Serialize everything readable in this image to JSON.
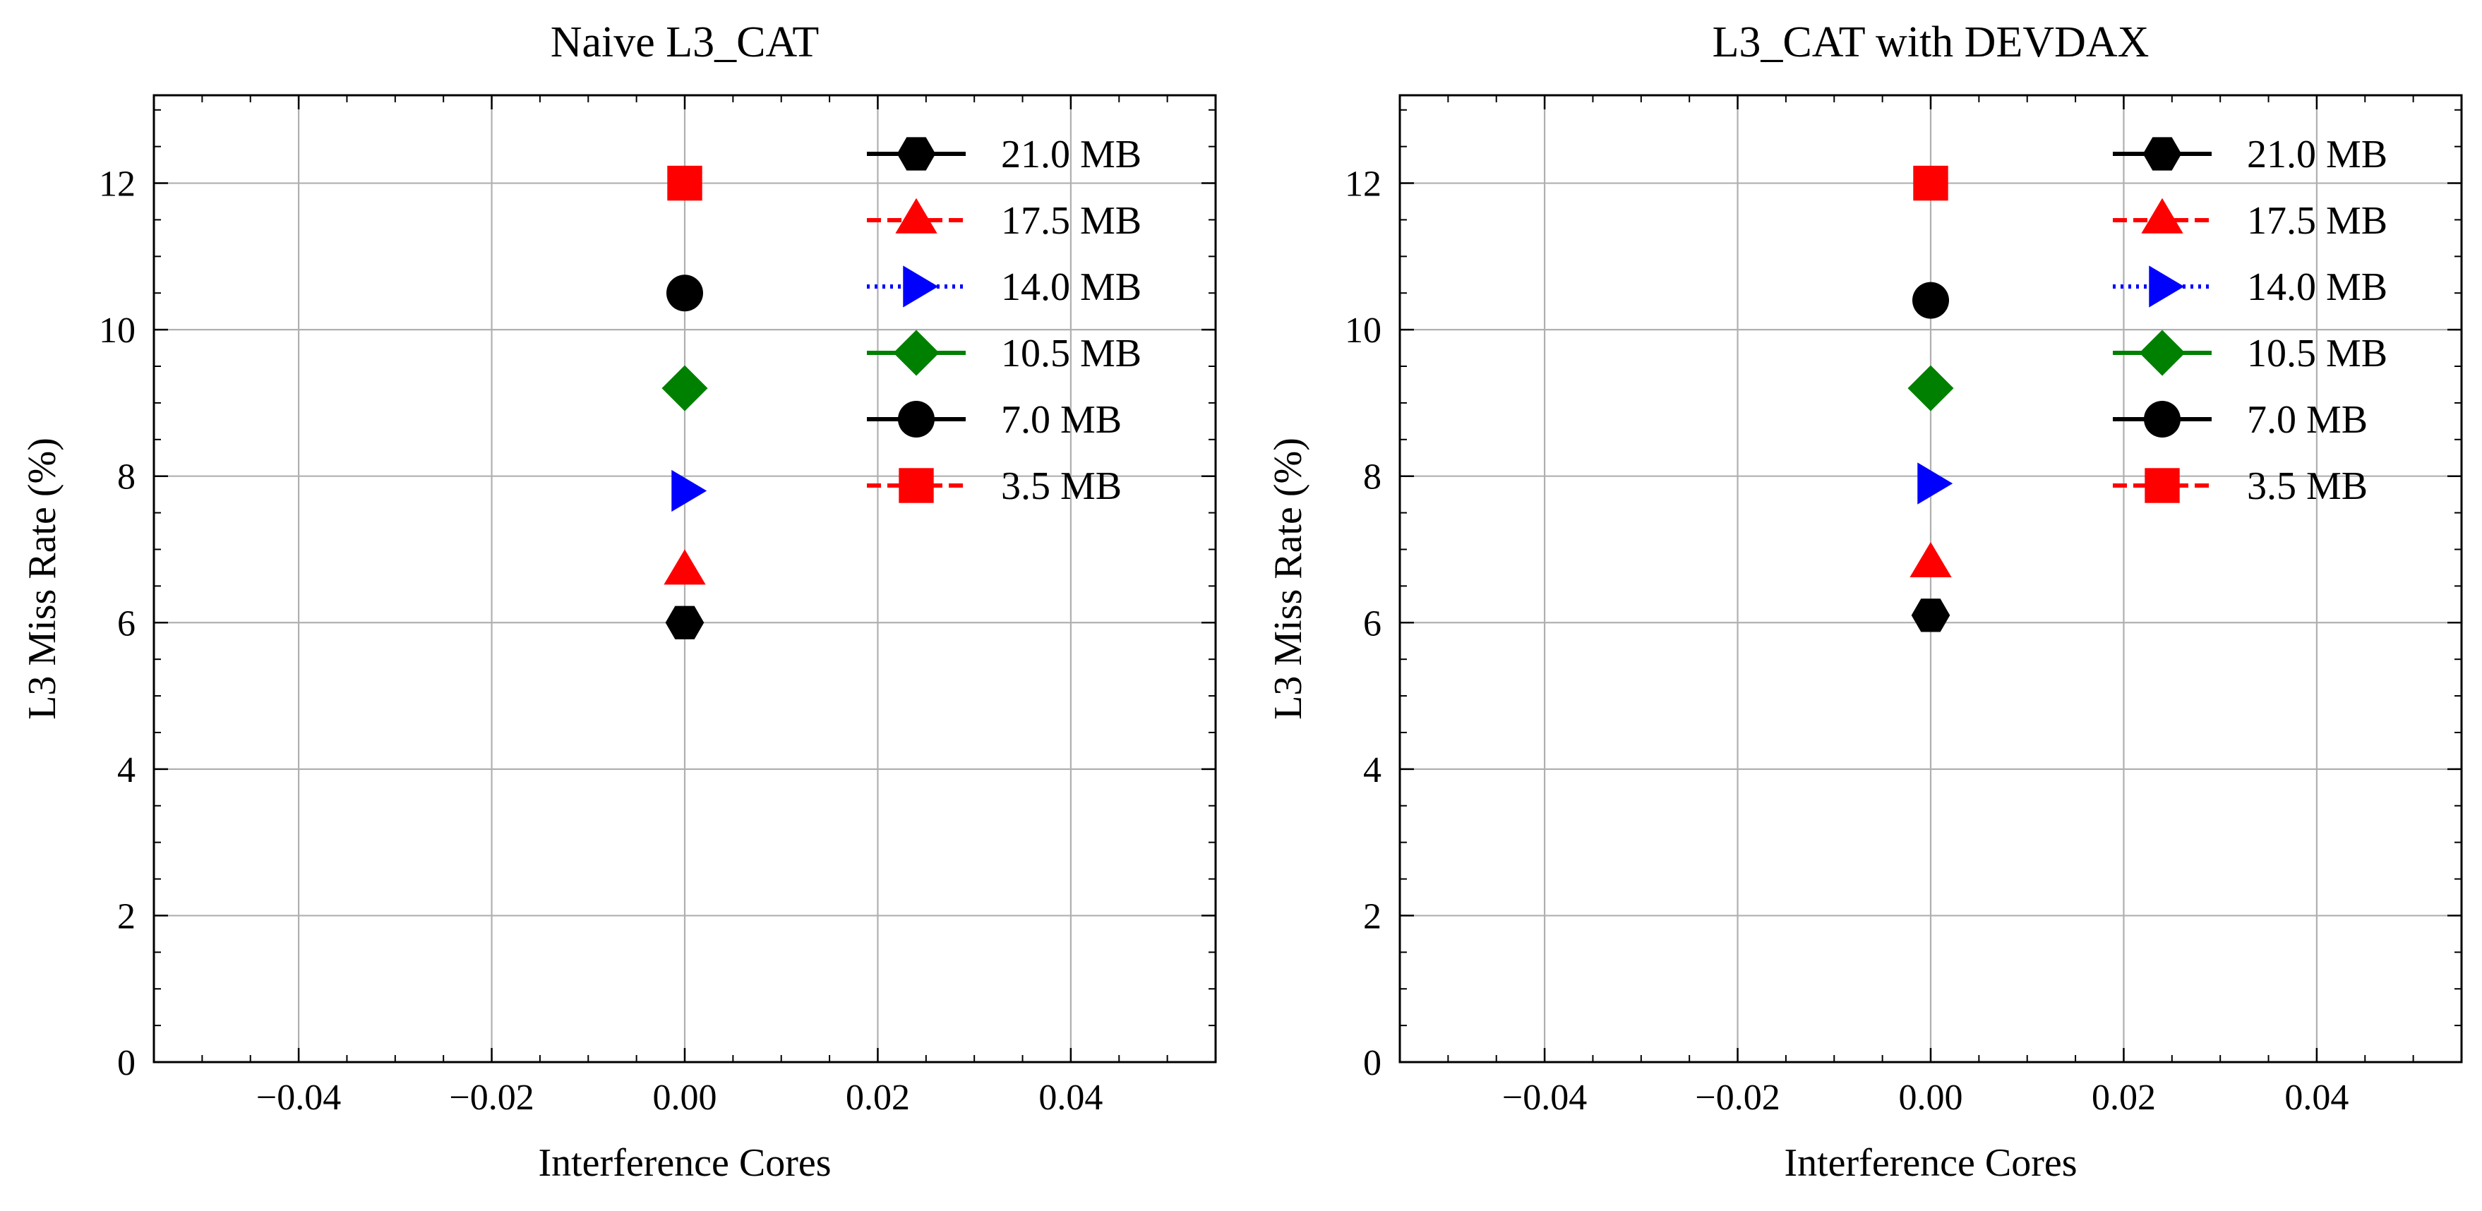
{
  "chart_data": [
    {
      "type": "scatter",
      "title": "Naive L3_CAT",
      "xlabel": "Interference Cores",
      "ylabel": "L3 Miss Rate (%)",
      "xlim": [
        -0.055,
        0.055
      ],
      "ylim": [
        0,
        13.2
      ],
      "xticks": [
        -0.04,
        -0.02,
        0.0,
        0.02,
        0.04
      ],
      "xtick_labels": [
        "−0.04",
        "−0.02",
        "0.00",
        "0.02",
        "0.04"
      ],
      "yticks": [
        0,
        2,
        4,
        6,
        8,
        10,
        12
      ],
      "ytick_labels": [
        "0",
        "2",
        "4",
        "6",
        "8",
        "10",
        "12"
      ],
      "grid": true,
      "legend_position": "top-right",
      "series": [
        {
          "name": "21.0 MB",
          "x": [
            0.0
          ],
          "y": [
            6.0
          ],
          "color": "#000000",
          "marker": "hexagon",
          "linestyle": "solid"
        },
        {
          "name": "17.5 MB",
          "x": [
            0.0
          ],
          "y": [
            6.7
          ],
          "color": "#ff0000",
          "marker": "triangle-up",
          "linestyle": "dashed"
        },
        {
          "name": "14.0 MB",
          "x": [
            0.0
          ],
          "y": [
            7.8
          ],
          "color": "#0000ff",
          "marker": "triangle-right",
          "linestyle": "dotted"
        },
        {
          "name": "10.5 MB",
          "x": [
            0.0
          ],
          "y": [
            9.2
          ],
          "color": "#008000",
          "marker": "diamond",
          "linestyle": "solid"
        },
        {
          "name": "7.0 MB",
          "x": [
            0.0
          ],
          "y": [
            10.5
          ],
          "color": "#000000",
          "marker": "circle",
          "linestyle": "solid"
        },
        {
          "name": "3.5 MB",
          "x": [
            0.0
          ],
          "y": [
            12.0
          ],
          "color": "#ff0000",
          "marker": "square",
          "linestyle": "dashed"
        }
      ]
    },
    {
      "type": "scatter",
      "title": "L3_CAT with DEVDAX",
      "xlabel": "Interference Cores",
      "ylabel": "L3 Miss Rate (%)",
      "xlim": [
        -0.055,
        0.055
      ],
      "ylim": [
        0,
        13.2
      ],
      "xticks": [
        -0.04,
        -0.02,
        0.0,
        0.02,
        0.04
      ],
      "xtick_labels": [
        "−0.04",
        "−0.02",
        "0.00",
        "0.02",
        "0.04"
      ],
      "yticks": [
        0,
        2,
        4,
        6,
        8,
        10,
        12
      ],
      "ytick_labels": [
        "0",
        "2",
        "4",
        "6",
        "8",
        "10",
        "12"
      ],
      "grid": true,
      "legend_position": "top-right",
      "series": [
        {
          "name": "21.0 MB",
          "x": [
            0.0
          ],
          "y": [
            6.1
          ],
          "color": "#000000",
          "marker": "hexagon",
          "linestyle": "solid"
        },
        {
          "name": "17.5 MB",
          "x": [
            0.0
          ],
          "y": [
            6.8
          ],
          "color": "#ff0000",
          "marker": "triangle-up",
          "linestyle": "dashed"
        },
        {
          "name": "14.0 MB",
          "x": [
            0.0
          ],
          "y": [
            7.9
          ],
          "color": "#0000ff",
          "marker": "triangle-right",
          "linestyle": "dotted"
        },
        {
          "name": "10.5 MB",
          "x": [
            0.0
          ],
          "y": [
            9.2
          ],
          "color": "#008000",
          "marker": "diamond",
          "linestyle": "solid"
        },
        {
          "name": "7.0 MB",
          "x": [
            0.0
          ],
          "y": [
            10.4
          ],
          "color": "#000000",
          "marker": "circle",
          "linestyle": "solid"
        },
        {
          "name": "3.5 MB",
          "x": [
            0.0
          ],
          "y": [
            12.0
          ],
          "color": "#ff0000",
          "marker": "square",
          "linestyle": "dashed"
        }
      ]
    }
  ]
}
